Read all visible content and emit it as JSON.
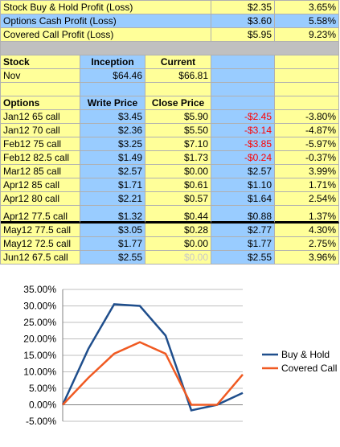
{
  "summary": [
    {
      "label": "Stock Buy & Hold Profit (Loss)",
      "amount": "$2.35",
      "pct": "3.65%",
      "bg": "y"
    },
    {
      "label": "Options Cash Profit (Loss)",
      "amount": "$3.60",
      "pct": "5.58%",
      "bg": "b"
    },
    {
      "label": "Covered Call Profit (Loss)",
      "amount": "$5.95",
      "pct": "9.23%",
      "bg": "y"
    }
  ],
  "stock": {
    "header": {
      "label": "Stock",
      "inception": "Inception",
      "current": "Current"
    },
    "row": {
      "label": "Nov",
      "inception": "$64.46",
      "current": "$66.81"
    }
  },
  "options": {
    "header": {
      "label": "Options",
      "write": "Write Price",
      "close": "Close Price"
    },
    "rows": [
      {
        "label": "Jan12 65 call",
        "write": "$3.45",
        "close": "$5.90",
        "profit": "-$2.45",
        "pct": "-3.80%",
        "neg": true
      },
      {
        "label": "Jan12 70 call",
        "write": "$2.36",
        "close": "$5.50",
        "profit": "-$3.14",
        "pct": "-4.87%",
        "neg": true
      },
      {
        "label": "Feb12 75 call",
        "write": "$3.25",
        "close": "$7.10",
        "profit": "-$3.85",
        "pct": "-5.97%",
        "neg": true
      },
      {
        "label": "Feb12 82.5 call",
        "write": "$1.49",
        "close": "$1.73",
        "profit": "-$0.24",
        "pct": "-0.37%",
        "neg": true
      },
      {
        "label": "Mar12 85 call",
        "write": "$2.57",
        "close": "$0.00",
        "profit": "$2.57",
        "pct": "3.99%",
        "neg": false
      },
      {
        "label": "Apr12 85 call",
        "write": "$1.71",
        "close": "$0.61",
        "profit": "$1.10",
        "pct": "1.71%",
        "neg": false
      },
      {
        "label": "Apr12 80 call",
        "write": "$2.21",
        "close": "$0.57",
        "profit": "$1.64",
        "pct": "2.54%",
        "neg": false
      },
      {
        "label": "Apr12 77.5 call",
        "write": "$1.32",
        "close": "$0.44",
        "profit": "$0.88",
        "pct": "1.37%",
        "neg": false
      },
      {
        "label": "May12 77.5 call",
        "write": "$3.05",
        "close": "$0.28",
        "profit": "$2.77",
        "pct": "4.30%",
        "neg": false
      },
      {
        "label": "May12 72.5 call",
        "write": "$1.77",
        "close": "$0.00",
        "profit": "$1.77",
        "pct": "2.75%",
        "neg": false
      },
      {
        "label": "Jun12 67.5 call",
        "write": "$2.55",
        "close": "$0.00",
        "profit": "$2.55",
        "pct": "3.96%",
        "neg": false,
        "closeGray": true
      }
    ]
  },
  "chart_data": {
    "type": "line",
    "title": "",
    "x": [
      1,
      2,
      3,
      4,
      5,
      6,
      7,
      8
    ],
    "ylim": [
      -0.05,
      0.35
    ],
    "yticks": [
      "35.00%",
      "30.00%",
      "25.00%",
      "20.00%",
      "15.00%",
      "10.00%",
      "5.00%",
      "0.00%",
      "-5.00%"
    ],
    "grid": true,
    "legend": "right",
    "series": [
      {
        "name": "Buy & Hold",
        "color": "#1f4e8c",
        "values": [
          0.0,
          0.17,
          0.305,
          0.3,
          0.21,
          -0.017,
          0.0,
          0.036
        ]
      },
      {
        "name": "Covered Call",
        "color": "#f05a22",
        "values": [
          0.0,
          0.082,
          0.155,
          0.19,
          0.155,
          0.0,
          0.0,
          0.092
        ]
      }
    ]
  }
}
